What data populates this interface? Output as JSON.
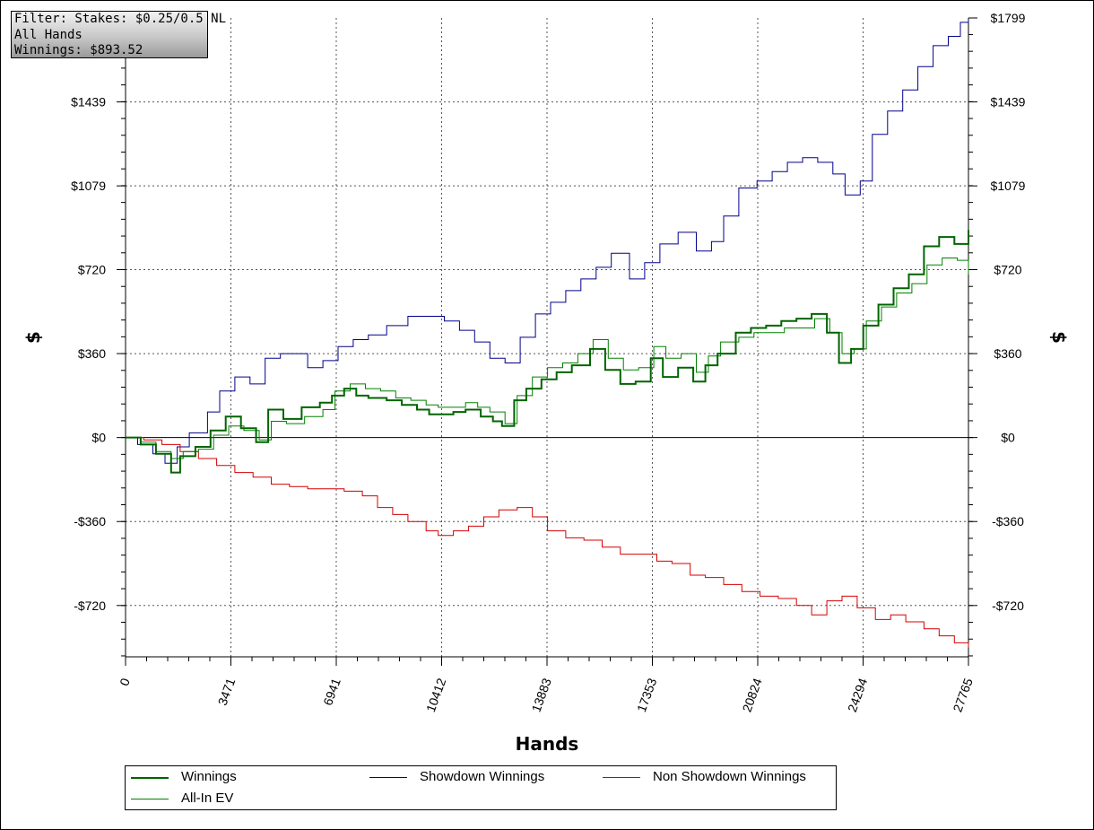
{
  "filter_box": {
    "line1": "Filter: Stakes: $0.25/0.5 NL",
    "line2": "All Hands",
    "line3": "Winnings: $893.52"
  },
  "chart_data": {
    "type": "line",
    "xlabel": "Hands",
    "ylabel": "$",
    "xlim": [
      0,
      27765
    ],
    "ylim": [
      -940,
      1799
    ],
    "x_ticks": [
      0,
      3471,
      6941,
      10412,
      13883,
      17353,
      20824,
      24294,
      27765
    ],
    "x_tick_labels": [
      "0",
      "3471",
      "6941",
      "10412",
      "13883",
      "17353",
      "20824",
      "24294",
      "27765"
    ],
    "y_ticks": [
      -720,
      -360,
      0,
      360,
      720,
      1079,
      1439,
      1799
    ],
    "y_tick_labels": [
      "-$720",
      "-$360",
      "$0",
      "$360",
      "$720",
      "$1079",
      "$1439",
      "$1799"
    ],
    "grid": true,
    "legend_position": "bottom",
    "series": [
      {
        "name": "Winnings",
        "color": "#006400",
        "points": [
          [
            0,
            0
          ],
          [
            500,
            -30
          ],
          [
            1000,
            -70
          ],
          [
            1500,
            -150
          ],
          [
            1800,
            -80
          ],
          [
            2300,
            -40
          ],
          [
            2800,
            30
          ],
          [
            3300,
            90
          ],
          [
            3800,
            40
          ],
          [
            4300,
            -20
          ],
          [
            4700,
            120
          ],
          [
            5200,
            80
          ],
          [
            5800,
            130
          ],
          [
            6400,
            150
          ],
          [
            6800,
            180
          ],
          [
            7200,
            210
          ],
          [
            7600,
            180
          ],
          [
            8000,
            170
          ],
          [
            8600,
            160
          ],
          [
            9100,
            140
          ],
          [
            9600,
            120
          ],
          [
            10000,
            100
          ],
          [
            10400,
            100
          ],
          [
            10800,
            110
          ],
          [
            11200,
            120
          ],
          [
            11700,
            90
          ],
          [
            12100,
            70
          ],
          [
            12400,
            50
          ],
          [
            12800,
            160
          ],
          [
            13200,
            210
          ],
          [
            13700,
            250
          ],
          [
            14200,
            280
          ],
          [
            14700,
            310
          ],
          [
            15300,
            380
          ],
          [
            15800,
            290
          ],
          [
            16300,
            230
          ],
          [
            16800,
            240
          ],
          [
            17300,
            340
          ],
          [
            17700,
            260
          ],
          [
            18200,
            300
          ],
          [
            18700,
            240
          ],
          [
            19100,
            310
          ],
          [
            19500,
            360
          ],
          [
            20100,
            450
          ],
          [
            20600,
            470
          ],
          [
            21100,
            480
          ],
          [
            21600,
            500
          ],
          [
            22100,
            510
          ],
          [
            22600,
            530
          ],
          [
            23100,
            450
          ],
          [
            23500,
            320
          ],
          [
            23900,
            380
          ],
          [
            24300,
            480
          ],
          [
            24800,
            570
          ],
          [
            25300,
            640
          ],
          [
            25800,
            700
          ],
          [
            26300,
            820
          ],
          [
            26800,
            860
          ],
          [
            27300,
            830
          ],
          [
            27765,
            890
          ]
        ]
      },
      {
        "name": "Showdown Winnings",
        "color": "#00008b",
        "points": [
          [
            0,
            0
          ],
          [
            400,
            -30
          ],
          [
            900,
            -70
          ],
          [
            1300,
            -110
          ],
          [
            1700,
            -40
          ],
          [
            2100,
            20
          ],
          [
            2700,
            110
          ],
          [
            3100,
            200
          ],
          [
            3600,
            260
          ],
          [
            4100,
            230
          ],
          [
            4600,
            340
          ],
          [
            5100,
            360
          ],
          [
            5600,
            360
          ],
          [
            6000,
            300
          ],
          [
            6500,
            330
          ],
          [
            7000,
            390
          ],
          [
            7500,
            420
          ],
          [
            8000,
            440
          ],
          [
            8600,
            480
          ],
          [
            9300,
            520
          ],
          [
            9900,
            520
          ],
          [
            10500,
            500
          ],
          [
            11000,
            460
          ],
          [
            11500,
            410
          ],
          [
            12000,
            340
          ],
          [
            12500,
            320
          ],
          [
            13000,
            430
          ],
          [
            13500,
            530
          ],
          [
            14000,
            580
          ],
          [
            14500,
            630
          ],
          [
            15000,
            680
          ],
          [
            15500,
            730
          ],
          [
            16000,
            790
          ],
          [
            16600,
            680
          ],
          [
            17100,
            750
          ],
          [
            17600,
            830
          ],
          [
            18200,
            880
          ],
          [
            18800,
            800
          ],
          [
            19300,
            840
          ],
          [
            19700,
            950
          ],
          [
            20200,
            1070
          ],
          [
            20800,
            1100
          ],
          [
            21300,
            1140
          ],
          [
            21800,
            1180
          ],
          [
            22300,
            1200
          ],
          [
            22800,
            1180
          ],
          [
            23300,
            1130
          ],
          [
            23700,
            1040
          ],
          [
            24200,
            1100
          ],
          [
            24600,
            1300
          ],
          [
            25100,
            1400
          ],
          [
            25600,
            1490
          ],
          [
            26100,
            1590
          ],
          [
            26600,
            1680
          ],
          [
            27100,
            1720
          ],
          [
            27500,
            1780
          ],
          [
            27765,
            1790
          ]
        ]
      },
      {
        "name": "Non Showdown Winnings",
        "color": "#d40000",
        "points": [
          [
            0,
            0
          ],
          [
            600,
            -10
          ],
          [
            1200,
            -30
          ],
          [
            1800,
            -60
          ],
          [
            2400,
            -90
          ],
          [
            3000,
            -120
          ],
          [
            3600,
            -150
          ],
          [
            4200,
            -170
          ],
          [
            4800,
            -200
          ],
          [
            5400,
            -210
          ],
          [
            6000,
            -220
          ],
          [
            6600,
            -220
          ],
          [
            7200,
            -230
          ],
          [
            7800,
            -250
          ],
          [
            8300,
            -300
          ],
          [
            8800,
            -330
          ],
          [
            9300,
            -360
          ],
          [
            9900,
            -400
          ],
          [
            10300,
            -420
          ],
          [
            10800,
            -400
          ],
          [
            11300,
            -380
          ],
          [
            11800,
            -340
          ],
          [
            12300,
            -310
          ],
          [
            12900,
            -300
          ],
          [
            13400,
            -340
          ],
          [
            13900,
            -400
          ],
          [
            14500,
            -430
          ],
          [
            15100,
            -440
          ],
          [
            15700,
            -470
          ],
          [
            16300,
            -500
          ],
          [
            16900,
            -500
          ],
          [
            17500,
            -530
          ],
          [
            18000,
            -540
          ],
          [
            18600,
            -590
          ],
          [
            19100,
            -600
          ],
          [
            19700,
            -630
          ],
          [
            20300,
            -660
          ],
          [
            20900,
            -680
          ],
          [
            21500,
            -690
          ],
          [
            22100,
            -720
          ],
          [
            22600,
            -760
          ],
          [
            23100,
            -700
          ],
          [
            23600,
            -680
          ],
          [
            24100,
            -730
          ],
          [
            24700,
            -780
          ],
          [
            25200,
            -760
          ],
          [
            25700,
            -790
          ],
          [
            26300,
            -820
          ],
          [
            26800,
            -850
          ],
          [
            27300,
            -880
          ],
          [
            27765,
            -900
          ]
        ]
      },
      {
        "name": "All-In EV",
        "color": "#008000",
        "points": [
          [
            0,
            0
          ],
          [
            500,
            -20
          ],
          [
            1000,
            -60
          ],
          [
            1500,
            -90
          ],
          [
            1900,
            -60
          ],
          [
            2400,
            -50
          ],
          [
            2900,
            10
          ],
          [
            3400,
            50
          ],
          [
            3900,
            30
          ],
          [
            4400,
            -10
          ],
          [
            4800,
            70
          ],
          [
            5300,
            60
          ],
          [
            5900,
            90
          ],
          [
            6500,
            120
          ],
          [
            6900,
            200
          ],
          [
            7400,
            230
          ],
          [
            7900,
            210
          ],
          [
            8400,
            200
          ],
          [
            8900,
            170
          ],
          [
            9400,
            160
          ],
          [
            9900,
            140
          ],
          [
            10300,
            130
          ],
          [
            10700,
            130
          ],
          [
            11200,
            150
          ],
          [
            11600,
            130
          ],
          [
            12000,
            110
          ],
          [
            12500,
            60
          ],
          [
            12900,
            180
          ],
          [
            13400,
            260
          ],
          [
            13900,
            300
          ],
          [
            14400,
            320
          ],
          [
            14900,
            360
          ],
          [
            15400,
            420
          ],
          [
            15900,
            340
          ],
          [
            16400,
            290
          ],
          [
            16900,
            300
          ],
          [
            17400,
            390
          ],
          [
            17800,
            340
          ],
          [
            18300,
            360
          ],
          [
            18800,
            280
          ],
          [
            19200,
            350
          ],
          [
            19600,
            410
          ],
          [
            20200,
            430
          ],
          [
            20700,
            450
          ],
          [
            21200,
            450
          ],
          [
            21700,
            470
          ],
          [
            22200,
            470
          ],
          [
            22700,
            510
          ],
          [
            23200,
            450
          ],
          [
            23600,
            360
          ],
          [
            24000,
            380
          ],
          [
            24400,
            500
          ],
          [
            24900,
            560
          ],
          [
            25400,
            620
          ],
          [
            25900,
            660
          ],
          [
            26400,
            740
          ],
          [
            26900,
            770
          ],
          [
            27400,
            760
          ],
          [
            27765,
            700
          ]
        ]
      }
    ]
  }
}
